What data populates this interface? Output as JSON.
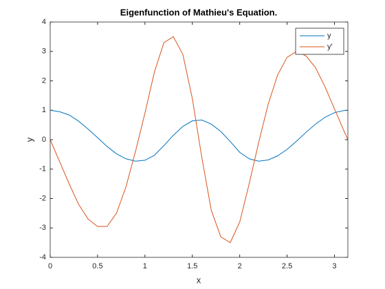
{
  "chart_data": {
    "type": "line",
    "title": "Eigenfunction of Mathieu's Equation.",
    "x_label": "x",
    "y_label": "y",
    "x": [
      0,
      0.1,
      0.2,
      0.3,
      0.4,
      0.5,
      0.6,
      0.7,
      0.8,
      0.9,
      1.0,
      1.1,
      1.2,
      1.3,
      1.4,
      1.5,
      1.6,
      1.7,
      1.8,
      1.9,
      2.0,
      2.1,
      2.2,
      2.3,
      2.4,
      2.5,
      2.6,
      2.7,
      2.8,
      2.9,
      3.0,
      3.1,
      3.14159
    ],
    "series": [
      {
        "name": "y",
        "color": "#0072bd",
        "values": [
          1.0,
          0.95,
          0.84,
          0.63,
          0.36,
          0.07,
          -0.23,
          -0.48,
          -0.65,
          -0.73,
          -0.7,
          -0.53,
          -0.2,
          0.15,
          0.45,
          0.64,
          0.67,
          0.53,
          0.28,
          -0.06,
          -0.43,
          -0.65,
          -0.73,
          -0.69,
          -0.55,
          -0.33,
          -0.05,
          0.25,
          0.53,
          0.76,
          0.92,
          0.99,
          1.0
        ]
      },
      {
        "name": "y'",
        "color": "#d95319",
        "values": [
          0,
          -0.75,
          -1.5,
          -2.2,
          -2.7,
          -2.95,
          -2.95,
          -2.5,
          -1.6,
          -0.4,
          0.9,
          2.3,
          3.3,
          3.5,
          2.9,
          1.4,
          -0.6,
          -2.4,
          -3.3,
          -3.5,
          -2.8,
          -1.5,
          -0.1,
          1.2,
          2.2,
          2.8,
          3.0,
          2.85,
          2.45,
          1.8,
          1.05,
          0.3,
          0
        ]
      }
    ],
    "xlim": [
      0,
      3.14159
    ],
    "ylim": [
      -4,
      4
    ],
    "xticks": [
      0,
      0.5,
      1,
      1.5,
      2,
      2.5,
      3
    ],
    "yticks": [
      -4,
      -3,
      -2,
      -1,
      0,
      1,
      2,
      3,
      4
    ],
    "legend": "top-right",
    "grid": false
  }
}
